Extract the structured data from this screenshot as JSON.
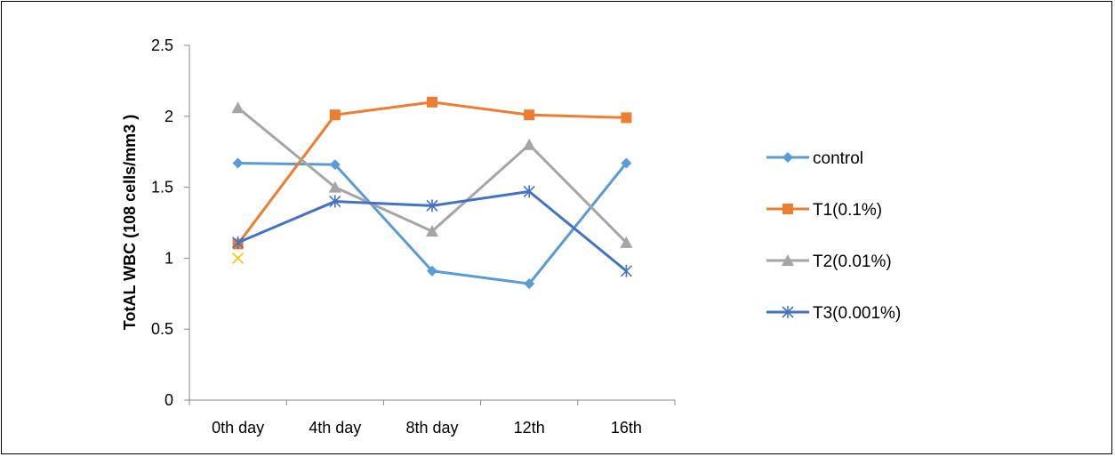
{
  "chart_data": {
    "type": "line",
    "title": "",
    "xlabel": "",
    "ylabel": "TotAL WBC  (108 cells/mm3 )",
    "categories": [
      "0th day",
      "4th day",
      "8th day",
      "12th",
      "16th"
    ],
    "ylim": [
      0,
      2.5
    ],
    "yticks": [
      "0",
      "0.5",
      "1",
      "1.5",
      "2",
      "2.5"
    ],
    "grid": false,
    "legend_position": "right",
    "series": [
      {
        "name": "control",
        "values": [
          1.67,
          1.66,
          0.91,
          0.82,
          1.67
        ],
        "color": "#5b9bd5",
        "marker": "diamond"
      },
      {
        "name": "T1(0.1%)",
        "values": [
          1.1,
          2.01,
          2.1,
          2.01,
          1.99
        ],
        "color": "#ed7d31",
        "marker": "square"
      },
      {
        "name": "T2(0.01%)",
        "values": [
          2.06,
          1.5,
          1.19,
          1.8,
          1.11
        ],
        "color": "#a5a5a5",
        "marker": "triangle"
      },
      {
        "name": "T3(0.001%)",
        "values": [
          1.11,
          1.4,
          1.37,
          1.47,
          0.91
        ],
        "color": "#4472c4",
        "marker": "star"
      }
    ],
    "extra_points": [
      {
        "category": "0th day",
        "value": 1.0,
        "color": "#ffc000",
        "marker": "x"
      }
    ]
  }
}
